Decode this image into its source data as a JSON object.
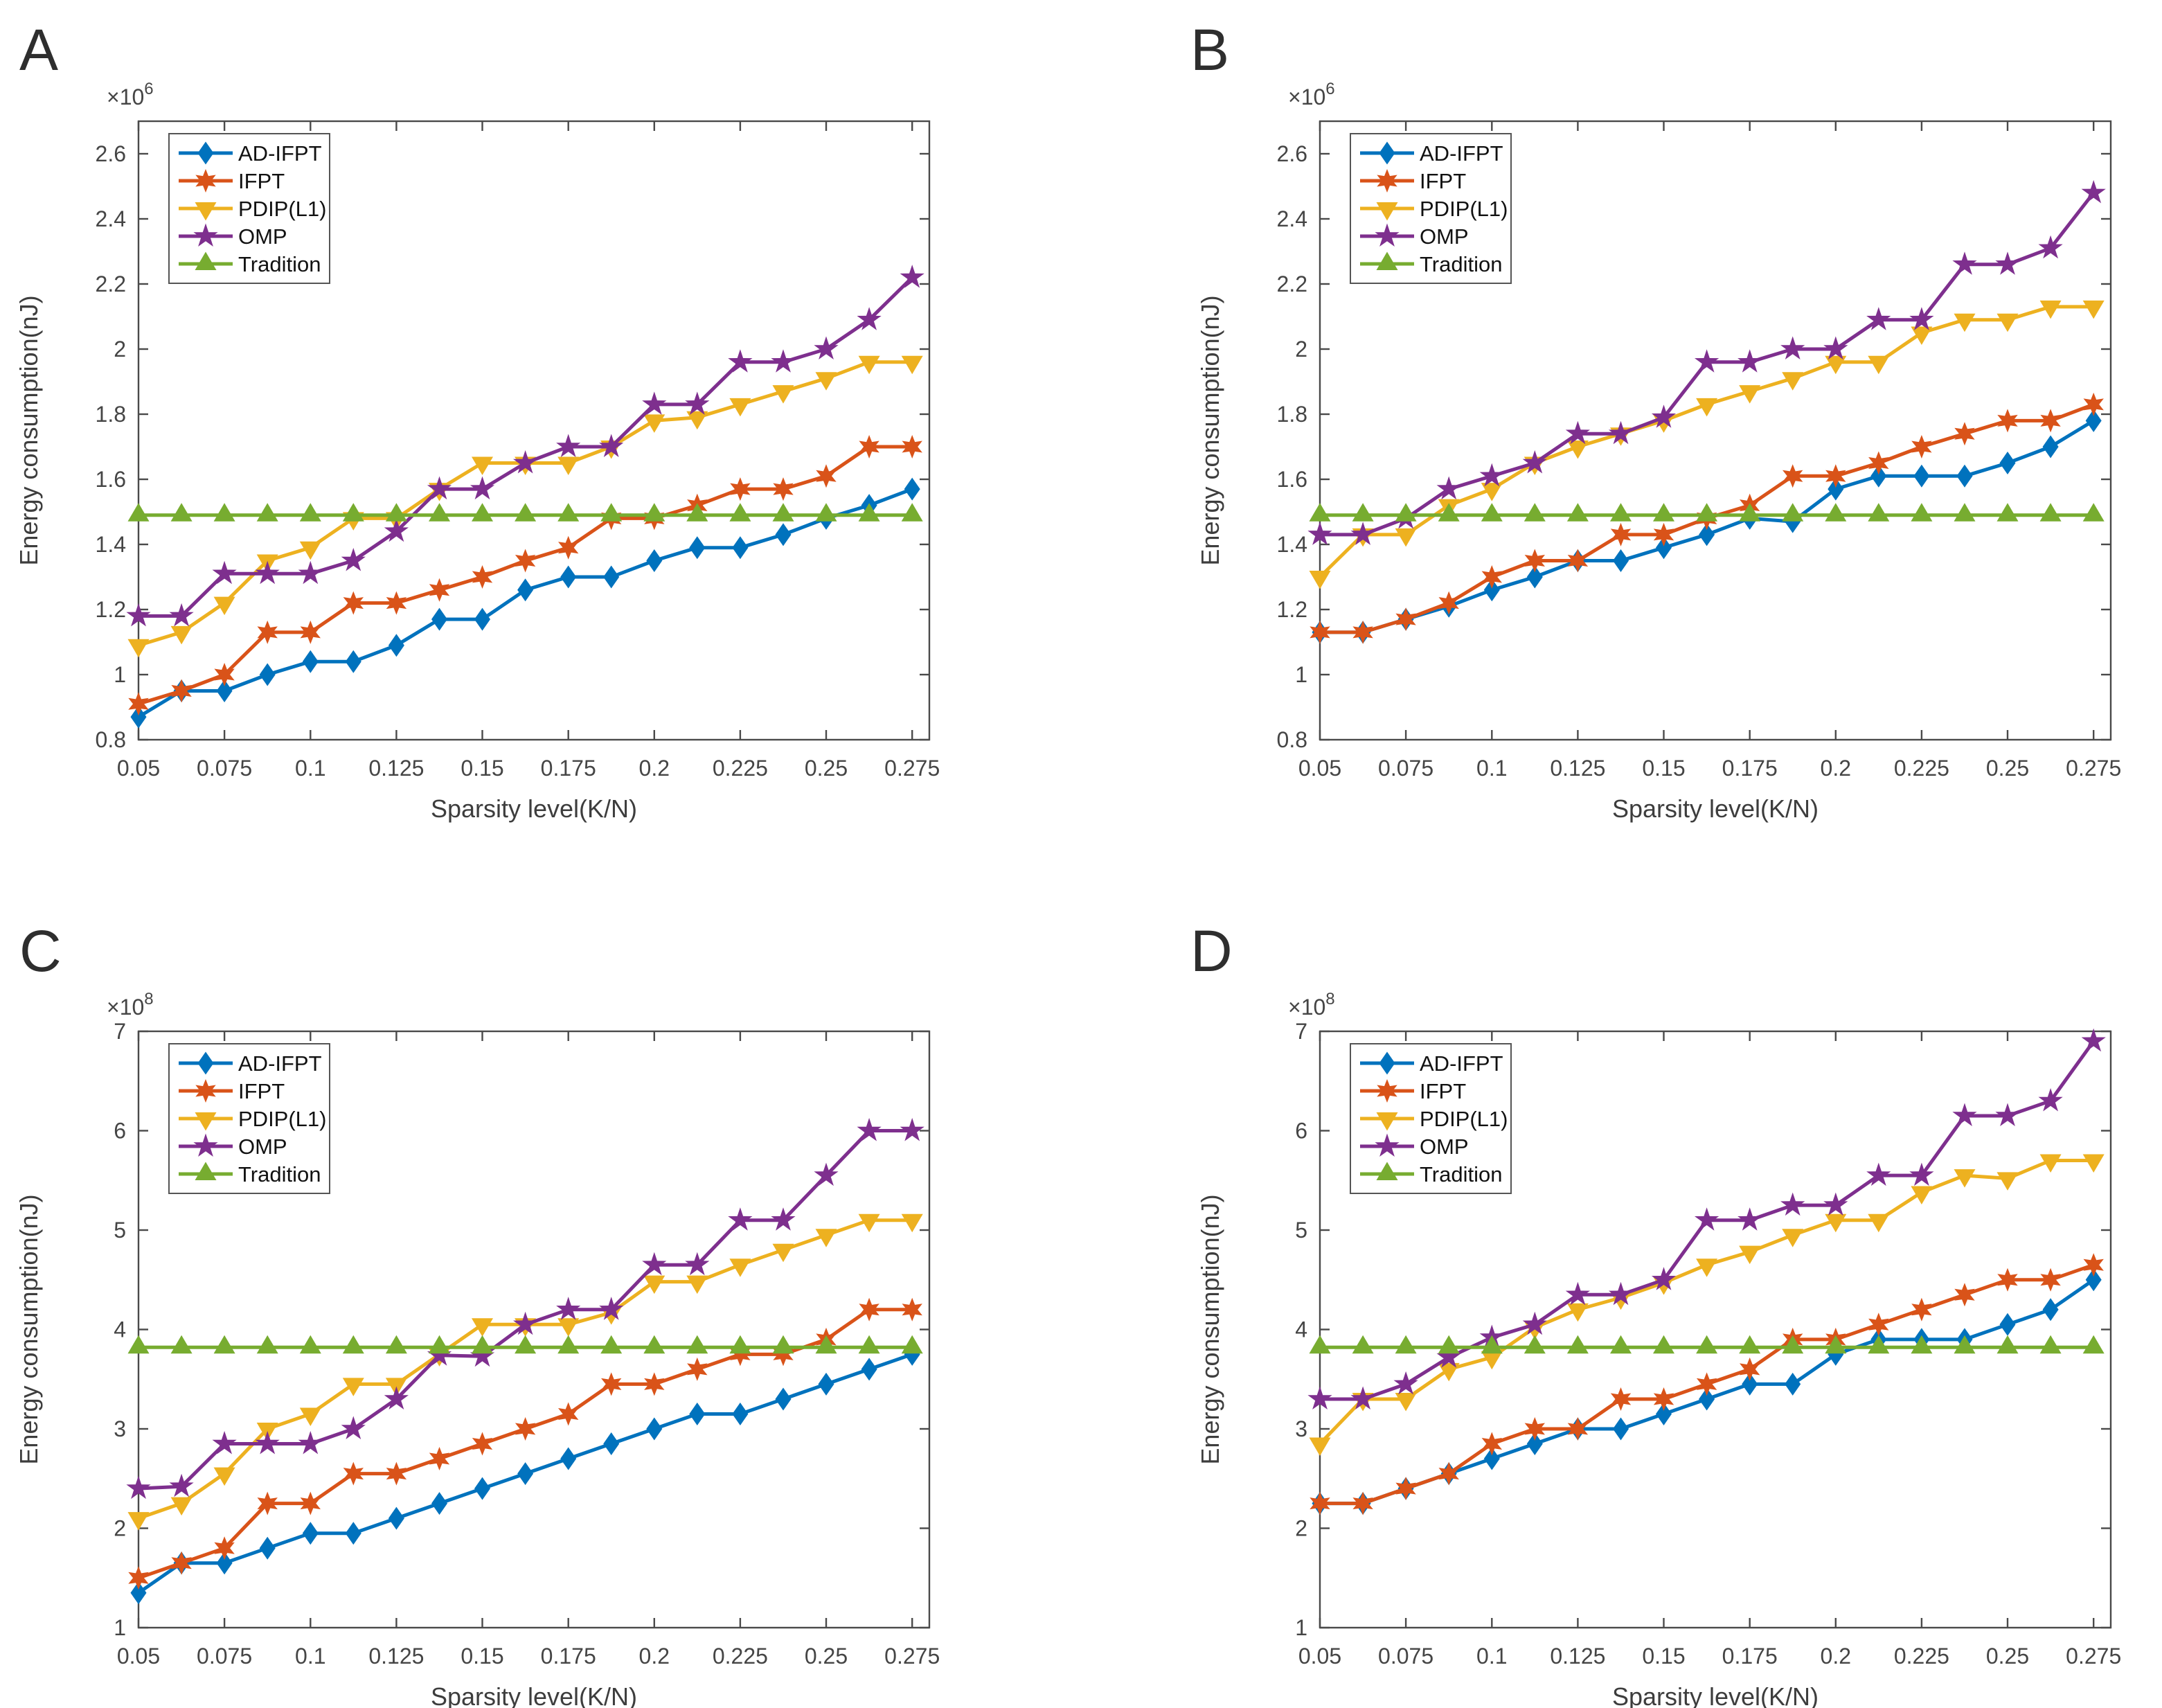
{
  "figure_title": "",
  "legend_entries": [
    "AD-IFPT",
    "IFPT",
    "PDIP(L1)",
    "OMP",
    "Tradition"
  ],
  "palette": {
    "ad_ifpt": "#0072BD",
    "ifpt": "#D95319",
    "pdip_l1": "#EDB120",
    "omp": "#7E2F8E",
    "tradition": "#77AC30",
    "axis": "#4a4a4a",
    "tick_text": "#454545",
    "label_text": "#3d3d3d",
    "legend_border": "#555555"
  },
  "chart_data": [
    {
      "type": "line",
      "panel_label": "A",
      "xlabel": "Sparsity level(K/N)",
      "ylabel": "Energy consumption(nJ)",
      "exponent_prefix": "×10",
      "exponent": "6",
      "xlim": [
        0.05,
        0.28
      ],
      "ylim": [
        0.8,
        2.7
      ],
      "xticks": [
        0.05,
        0.075,
        0.1,
        0.125,
        0.15,
        0.175,
        0.2,
        0.225,
        0.25,
        0.275
      ],
      "xtick_labels": [
        "0.05",
        "0.075",
        "0.1",
        "0.125",
        "0.15",
        "0.175",
        "0.2",
        "0.225",
        "0.25",
        "0.275"
      ],
      "yticks": [
        0.8,
        1,
        1.2,
        1.4,
        1.6,
        1.8,
        2,
        2.2,
        2.4,
        2.6
      ],
      "ytick_labels": [
        "0.8",
        "1",
        "1.2",
        "1.4",
        "1.6",
        "1.8",
        "2",
        "2.2",
        "2.4",
        "2.6"
      ],
      "grid": false,
      "legend_position": "top-left",
      "x": [
        0.05,
        0.0625,
        0.075,
        0.0875,
        0.1,
        0.1125,
        0.125,
        0.1375,
        0.15,
        0.1625,
        0.175,
        0.1875,
        0.2,
        0.2125,
        0.225,
        0.2375,
        0.25,
        0.2625,
        0.275
      ],
      "series": [
        {
          "name": "AD-IFPT",
          "color": "#0072BD",
          "marker": "diamond",
          "values": [
            0.87,
            0.95,
            0.95,
            1.0,
            1.04,
            1.04,
            1.09,
            1.17,
            1.17,
            1.26,
            1.3,
            1.3,
            1.35,
            1.39,
            1.39,
            1.43,
            1.48,
            1.52,
            1.57
          ]
        },
        {
          "name": "IFPT",
          "color": "#D95319",
          "marker": "hexagram",
          "values": [
            0.91,
            0.95,
            1.0,
            1.13,
            1.13,
            1.22,
            1.22,
            1.26,
            1.3,
            1.35,
            1.39,
            1.48,
            1.48,
            1.52,
            1.57,
            1.57,
            1.61,
            1.7,
            1.7
          ]
        },
        {
          "name": "PDIP(L1)",
          "color": "#EDB120",
          "marker": "triangle-down",
          "values": [
            1.09,
            1.13,
            1.22,
            1.35,
            1.39,
            1.48,
            1.48,
            1.57,
            1.65,
            1.65,
            1.65,
            1.7,
            1.78,
            1.79,
            1.83,
            1.87,
            1.91,
            1.96,
            1.96
          ]
        },
        {
          "name": "OMP",
          "color": "#7E2F8E",
          "marker": "pentagram",
          "values": [
            1.18,
            1.18,
            1.31,
            1.31,
            1.31,
            1.35,
            1.44,
            1.57,
            1.57,
            1.65,
            1.7,
            1.7,
            1.83,
            1.83,
            1.96,
            1.96,
            2.0,
            2.09,
            2.22
          ]
        },
        {
          "name": "Tradition",
          "color": "#77AC30",
          "marker": "triangle-up",
          "values": [
            1.49,
            1.49,
            1.49,
            1.49,
            1.49,
            1.49,
            1.49,
            1.49,
            1.49,
            1.49,
            1.49,
            1.49,
            1.49,
            1.49,
            1.49,
            1.49,
            1.49,
            1.49,
            1.49
          ]
        }
      ]
    },
    {
      "type": "line",
      "panel_label": "B",
      "xlabel": "Sparsity level(K/N)",
      "ylabel": "Energy consumption(nJ)",
      "exponent_prefix": "×10",
      "exponent": "6",
      "xlim": [
        0.05,
        0.28
      ],
      "ylim": [
        0.8,
        2.7
      ],
      "xticks": [
        0.05,
        0.075,
        0.1,
        0.125,
        0.15,
        0.175,
        0.2,
        0.225,
        0.25,
        0.275
      ],
      "xtick_labels": [
        "0.05",
        "0.075",
        "0.1",
        "0.125",
        "0.15",
        "0.175",
        "0.2",
        "0.225",
        "0.25",
        "0.275"
      ],
      "yticks": [
        0.8,
        1,
        1.2,
        1.4,
        1.6,
        1.8,
        2,
        2.2,
        2.4,
        2.6
      ],
      "ytick_labels": [
        "0.8",
        "1",
        "1.2",
        "1.4",
        "1.6",
        "1.8",
        "2",
        "2.2",
        "2.4",
        "2.6"
      ],
      "grid": false,
      "legend_position": "top-left",
      "x": [
        0.05,
        0.0625,
        0.075,
        0.0875,
        0.1,
        0.1125,
        0.125,
        0.1375,
        0.15,
        0.1625,
        0.175,
        0.1875,
        0.2,
        0.2125,
        0.225,
        0.2375,
        0.25,
        0.2625,
        0.275
      ],
      "series": [
        {
          "name": "AD-IFPT",
          "color": "#0072BD",
          "marker": "diamond",
          "values": [
            1.13,
            1.13,
            1.17,
            1.21,
            1.26,
            1.3,
            1.35,
            1.35,
            1.39,
            1.43,
            1.48,
            1.47,
            1.57,
            1.61,
            1.61,
            1.61,
            1.65,
            1.7,
            1.78
          ]
        },
        {
          "name": "IFPT",
          "color": "#D95319",
          "marker": "hexagram",
          "values": [
            1.13,
            1.13,
            1.17,
            1.22,
            1.3,
            1.35,
            1.35,
            1.43,
            1.43,
            1.48,
            1.52,
            1.61,
            1.61,
            1.65,
            1.7,
            1.74,
            1.78,
            1.78,
            1.83
          ]
        },
        {
          "name": "PDIP(L1)",
          "color": "#EDB120",
          "marker": "triangle-down",
          "values": [
            1.3,
            1.43,
            1.43,
            1.52,
            1.57,
            1.65,
            1.7,
            1.74,
            1.78,
            1.83,
            1.87,
            1.91,
            1.96,
            1.96,
            2.05,
            2.09,
            2.09,
            2.13,
            2.13
          ]
        },
        {
          "name": "OMP",
          "color": "#7E2F8E",
          "marker": "pentagram",
          "values": [
            1.43,
            1.43,
            1.48,
            1.57,
            1.61,
            1.65,
            1.74,
            1.74,
            1.79,
            1.96,
            1.96,
            2.0,
            2.0,
            2.09,
            2.09,
            2.26,
            2.26,
            2.31,
            2.48
          ]
        },
        {
          "name": "Tradition",
          "color": "#77AC30",
          "marker": "triangle-up",
          "values": [
            1.49,
            1.49,
            1.49,
            1.49,
            1.49,
            1.49,
            1.49,
            1.49,
            1.49,
            1.49,
            1.49,
            1.49,
            1.49,
            1.49,
            1.49,
            1.49,
            1.49,
            1.49,
            1.49
          ]
        }
      ]
    },
    {
      "type": "line",
      "panel_label": "C",
      "xlabel": "Sparsity level(K/N)",
      "ylabel": "Energy consumption(nJ)",
      "exponent_prefix": "×10",
      "exponent": "8",
      "xlim": [
        0.05,
        0.28
      ],
      "ylim": [
        1,
        7
      ],
      "xticks": [
        0.05,
        0.075,
        0.1,
        0.125,
        0.15,
        0.175,
        0.2,
        0.225,
        0.25,
        0.275
      ],
      "xtick_labels": [
        "0.05",
        "0.075",
        "0.1",
        "0.125",
        "0.15",
        "0.175",
        "0.2",
        "0.225",
        "0.25",
        "0.275"
      ],
      "yticks": [
        1,
        2,
        3,
        4,
        5,
        6,
        7
      ],
      "ytick_labels": [
        "1",
        "2",
        "3",
        "4",
        "5",
        "6",
        "7"
      ],
      "grid": false,
      "legend_position": "top-left",
      "x": [
        0.05,
        0.0625,
        0.075,
        0.0875,
        0.1,
        0.1125,
        0.125,
        0.1375,
        0.15,
        0.1625,
        0.175,
        0.1875,
        0.2,
        0.2125,
        0.225,
        0.2375,
        0.25,
        0.2625,
        0.275
      ],
      "series": [
        {
          "name": "AD-IFPT",
          "color": "#0072BD",
          "marker": "diamond",
          "values": [
            1.35,
            1.65,
            1.65,
            1.8,
            1.95,
            1.95,
            2.1,
            2.25,
            2.4,
            2.55,
            2.7,
            2.85,
            3.0,
            3.15,
            3.15,
            3.3,
            3.45,
            3.6,
            3.75
          ]
        },
        {
          "name": "IFPT",
          "color": "#D95319",
          "marker": "hexagram",
          "values": [
            1.5,
            1.65,
            1.8,
            2.25,
            2.25,
            2.55,
            2.55,
            2.7,
            2.85,
            3.0,
            3.15,
            3.45,
            3.45,
            3.6,
            3.75,
            3.75,
            3.9,
            4.2,
            4.2
          ]
        },
        {
          "name": "PDIP(L1)",
          "color": "#EDB120",
          "marker": "triangle-down",
          "values": [
            2.1,
            2.25,
            2.55,
            3.0,
            3.15,
            3.45,
            3.45,
            3.75,
            4.05,
            4.05,
            4.05,
            4.17,
            4.48,
            4.48,
            4.65,
            4.8,
            4.95,
            5.1,
            5.1
          ]
        },
        {
          "name": "OMP",
          "color": "#7E2F8E",
          "marker": "pentagram",
          "values": [
            2.4,
            2.42,
            2.85,
            2.85,
            2.85,
            3.0,
            3.3,
            3.74,
            3.73,
            4.05,
            4.2,
            4.2,
            4.65,
            4.65,
            5.1,
            5.1,
            5.55,
            6.0,
            6.0
          ]
        },
        {
          "name": "Tradition",
          "color": "#77AC30",
          "marker": "triangle-up",
          "values": [
            3.82,
            3.82,
            3.82,
            3.82,
            3.82,
            3.82,
            3.82,
            3.82,
            3.82,
            3.82,
            3.82,
            3.82,
            3.82,
            3.82,
            3.82,
            3.82,
            3.82,
            3.82,
            3.82
          ]
        }
      ]
    },
    {
      "type": "line",
      "panel_label": "D",
      "xlabel": "Sparsity level(K/N)",
      "ylabel": "Energy consumption(nJ)",
      "exponent_prefix": "×10",
      "exponent": "8",
      "xlim": [
        0.05,
        0.28
      ],
      "ylim": [
        1,
        7
      ],
      "xticks": [
        0.05,
        0.075,
        0.1,
        0.125,
        0.15,
        0.175,
        0.2,
        0.225,
        0.25,
        0.275
      ],
      "xtick_labels": [
        "0.05",
        "0.075",
        "0.1",
        "0.125",
        "0.15",
        "0.175",
        "0.2",
        "0.225",
        "0.25",
        "0.275"
      ],
      "yticks": [
        1,
        2,
        3,
        4,
        5,
        6,
        7
      ],
      "ytick_labels": [
        "1",
        "2",
        "3",
        "4",
        "5",
        "6",
        "7"
      ],
      "grid": false,
      "legend_position": "top-left",
      "x": [
        0.05,
        0.0625,
        0.075,
        0.0875,
        0.1,
        0.1125,
        0.125,
        0.1375,
        0.15,
        0.1625,
        0.175,
        0.1875,
        0.2,
        0.2125,
        0.225,
        0.2375,
        0.25,
        0.2625,
        0.275
      ],
      "series": [
        {
          "name": "AD-IFPT",
          "color": "#0072BD",
          "marker": "diamond",
          "values": [
            2.25,
            2.25,
            2.4,
            2.55,
            2.7,
            2.85,
            3.0,
            3.0,
            3.15,
            3.3,
            3.45,
            3.45,
            3.75,
            3.9,
            3.9,
            3.9,
            4.05,
            4.2,
            4.5
          ]
        },
        {
          "name": "IFPT",
          "color": "#D95319",
          "marker": "hexagram",
          "values": [
            2.25,
            2.25,
            2.4,
            2.55,
            2.85,
            3.0,
            3.0,
            3.3,
            3.3,
            3.45,
            3.6,
            3.9,
            3.9,
            4.05,
            4.2,
            4.35,
            4.5,
            4.5,
            4.65
          ]
        },
        {
          "name": "PDIP(L1)",
          "color": "#EDB120",
          "marker": "triangle-down",
          "values": [
            2.85,
            3.3,
            3.3,
            3.6,
            3.72,
            4.02,
            4.2,
            4.32,
            4.47,
            4.65,
            4.78,
            4.95,
            5.1,
            5.1,
            5.38,
            5.55,
            5.52,
            5.7,
            5.7
          ]
        },
        {
          "name": "OMP",
          "color": "#7E2F8E",
          "marker": "pentagram",
          "values": [
            3.3,
            3.3,
            3.45,
            3.72,
            3.92,
            4.05,
            4.35,
            4.35,
            4.5,
            5.1,
            5.1,
            5.25,
            5.25,
            5.55,
            5.55,
            6.15,
            6.15,
            6.3,
            6.9
          ]
        },
        {
          "name": "Tradition",
          "color": "#77AC30",
          "marker": "triangle-up",
          "values": [
            3.82,
            3.82,
            3.82,
            3.82,
            3.82,
            3.82,
            3.82,
            3.82,
            3.82,
            3.82,
            3.82,
            3.82,
            3.82,
            3.82,
            3.82,
            3.82,
            3.82,
            3.82,
            3.82
          ]
        }
      ]
    }
  ]
}
